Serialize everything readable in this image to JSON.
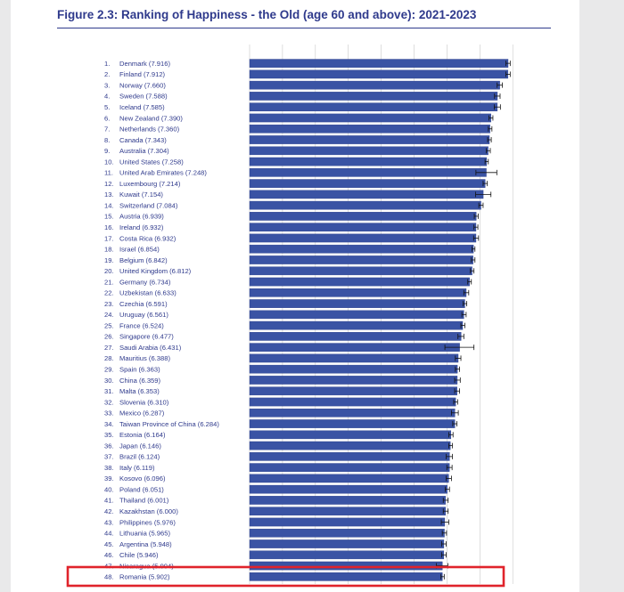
{
  "figure_title": "Figure 2.3: Ranking of Happiness - the Old (age 60 and above): 2021-2023",
  "colors": {
    "bar": "#3a53a4",
    "bar_edge": "#2b3f8a",
    "label": "#2f3a8c",
    "grid": "#c9c9c9",
    "highlight": "#e0232b"
  },
  "highlight": {
    "label": "48. Romania (5.902)"
  },
  "chart_data": {
    "type": "bar",
    "orientation": "horizontal",
    "title": "Figure 2.3: Ranking of Happiness - the Old (age 60 and above): 2021-2023",
    "xlim": [
      0,
      8
    ],
    "grid": true,
    "highlighted_country": "Romania",
    "categories": [
      "1. Denmark (7.916)",
      "2. Finland (7.912)",
      "3. Norway (7.660)",
      "4. Sweden (7.588)",
      "5. Iceland (7.585)",
      "6. New Zealand (7.390)",
      "7. Netherlands (7.360)",
      "8. Canada (7.343)",
      "9. Australia (7.304)",
      "10. United States (7.258)",
      "11. United Arab Emirates (7.248)",
      "12. Luxembourg (7.214)",
      "13. Kuwait (7.154)",
      "14. Switzerland (7.084)",
      "15. Austria (6.939)",
      "16. Ireland (6.932)",
      "17. Costa Rica (6.932)",
      "18. Israel (6.854)",
      "19. Belgium (6.842)",
      "20. United Kingdom (6.812)",
      "21. Germany (6.734)",
      "22. Uzbekistan (6.633)",
      "23. Czechia (6.591)",
      "24. Uruguay (6.561)",
      "25. France (6.524)",
      "26. Singapore (6.477)",
      "27. Saudi Arabia (6.431)",
      "28. Mauritius (6.388)",
      "29. Spain (6.363)",
      "30. China (6.359)",
      "31. Malta (6.353)",
      "32. Slovenia (6.310)",
      "33. Mexico (6.287)",
      "34. Taiwan Province of China (6.284)",
      "35. Estonia (6.164)",
      "36. Japan (6.146)",
      "37. Brazil (6.124)",
      "38. Italy (6.119)",
      "39. Kosovo (6.096)",
      "40. Poland (6.051)",
      "41. Thailand (6.001)",
      "42. Kazakhstan (6.000)",
      "43. Philippines (5.976)",
      "44. Lithuania (5.965)",
      "45. Argentina (5.948)",
      "46. Chile (5.946)",
      "47. Nicaragua (5.904)",
      "48. Romania (5.902)"
    ],
    "values": [
      7.916,
      7.912,
      7.66,
      7.588,
      7.585,
      7.39,
      7.36,
      7.343,
      7.304,
      7.258,
      7.248,
      7.214,
      7.154,
      7.084,
      6.939,
      6.932,
      6.932,
      6.854,
      6.842,
      6.812,
      6.734,
      6.633,
      6.591,
      6.561,
      6.524,
      6.477,
      6.431,
      6.388,
      6.363,
      6.359,
      6.353,
      6.31,
      6.287,
      6.284,
      6.164,
      6.146,
      6.124,
      6.119,
      6.096,
      6.051,
      6.001,
      6.0,
      5.976,
      5.965,
      5.948,
      5.946,
      5.904,
      5.902
    ],
    "error_low": [
      7.85,
      7.85,
      7.58,
      7.5,
      7.49,
      7.33,
      7.31,
      7.29,
      7.25,
      7.21,
      6.93,
      7.15,
      6.92,
      7.02,
      6.88,
      6.87,
      6.86,
      6.81,
      6.79,
      6.76,
      6.68,
      6.56,
      6.54,
      6.5,
      6.47,
      6.38,
      5.98,
      6.3,
      6.3,
      6.28,
      6.28,
      6.25,
      6.18,
      6.22,
      6.1,
      6.1,
      6.02,
      6.04,
      6.02,
      5.99,
      5.93,
      5.93,
      5.87,
      5.9,
      5.88,
      5.88,
      5.72,
      5.86
    ],
    "error_high": [
      7.98,
      7.98,
      7.74,
      7.67,
      7.68,
      7.45,
      7.42,
      7.4,
      7.37,
      7.31,
      7.57,
      7.28,
      7.39,
      7.15,
      7.0,
      6.99,
      7.01,
      6.9,
      6.9,
      6.87,
      6.79,
      6.71,
      6.65,
      6.63,
      6.59,
      6.56,
      6.87,
      6.47,
      6.43,
      6.45,
      6.43,
      6.37,
      6.39,
      6.35,
      6.23,
      6.21,
      6.21,
      6.2,
      6.18,
      6.12,
      6.08,
      6.08,
      6.1,
      6.03,
      6.02,
      6.02,
      6.07,
      5.96
    ]
  }
}
